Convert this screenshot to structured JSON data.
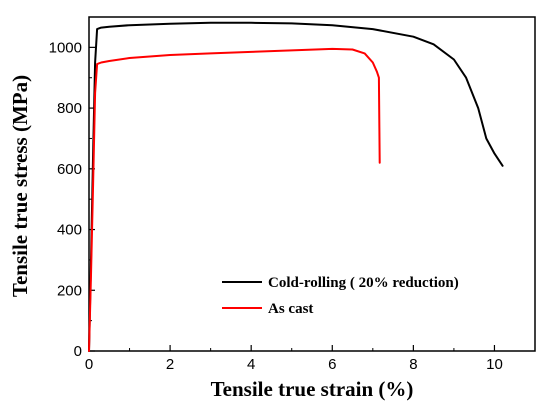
{
  "chart_data": {
    "type": "line",
    "title": "",
    "xlabel": "Tensile true strain (%)",
    "ylabel": "Tensile true  stress (MPa)",
    "xlim": [
      0,
      11
    ],
    "ylim": [
      0,
      1100
    ],
    "xticks": [
      0,
      2,
      4,
      6,
      8,
      10
    ],
    "yticks": [
      0,
      200,
      400,
      600,
      800,
      1000
    ],
    "grid": false,
    "legend_position": "bottom-right",
    "series": [
      {
        "name": "Cold-rolling ( 20% reduction)",
        "color": "#000000",
        "x": [
          0,
          0.05,
          0.1,
          0.15,
          0.2,
          0.3,
          0.5,
          1,
          2,
          3,
          4,
          5,
          6,
          7,
          8,
          8.5,
          9,
          9.3,
          9.6,
          9.8,
          10,
          10.2
        ],
        "y": [
          0,
          300,
          650,
          950,
          1060,
          1065,
          1068,
          1073,
          1078,
          1081,
          1081,
          1079,
          1073,
          1060,
          1035,
          1010,
          960,
          900,
          800,
          700,
          650,
          610
        ]
      },
      {
        "name": "As cast",
        "color": "#ff0000",
        "x": [
          0,
          0.05,
          0.1,
          0.15,
          0.2,
          0.3,
          0.5,
          1,
          2,
          3,
          4,
          5,
          6,
          6.5,
          6.8,
          7,
          7.1,
          7.15,
          7.17
        ],
        "y": [
          0,
          250,
          550,
          850,
          945,
          950,
          955,
          965,
          975,
          980,
          985,
          990,
          995,
          993,
          980,
          950,
          920,
          900,
          620
        ]
      }
    ]
  }
}
